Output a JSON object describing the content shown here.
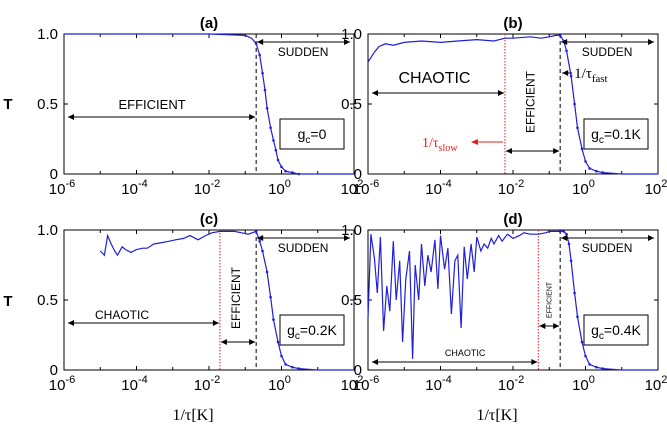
{
  "figure": {
    "ylabel": "T",
    "xlabel": "1/τ[K]"
  },
  "colors": {
    "series": "#1f1fdc",
    "threshold": "#e02020",
    "dashed": "#000000",
    "axis": "#000000"
  },
  "chart_data": [
    {
      "panel_label": "(a)",
      "type": "line",
      "xscale": "log",
      "xlim": [
        1e-06,
        100
      ],
      "ylim": [
        0,
        1.0
      ],
      "xticks": [
        {
          "v": -6,
          "lbl": "10",
          "exp": "-6"
        },
        {
          "v": -4,
          "lbl": "10",
          "exp": "-4"
        },
        {
          "v": -2,
          "lbl": "10",
          "exp": "-2"
        },
        {
          "v": 0,
          "lbl": "10",
          "exp": "0"
        },
        {
          "v": 2,
          "lbl": "10",
          "exp": "2"
        }
      ],
      "yticks": [
        "0",
        "0.5",
        "1.0"
      ],
      "series": [
        {
          "x": [
            1e-06,
            0.0001,
            0.01,
            0.1,
            0.15,
            0.2,
            0.25,
            0.3,
            0.35,
            0.4,
            0.5,
            0.6,
            0.7,
            0.8,
            1.0,
            1.3,
            2,
            3,
            5,
            10,
            100
          ],
          "y": [
            1.0,
            1.0,
            1.0,
            0.99,
            0.97,
            0.93,
            0.85,
            0.72,
            0.6,
            0.47,
            0.33,
            0.24,
            0.17,
            0.1,
            0.05,
            0.02,
            0.01,
            0,
            0,
            0,
            0
          ]
        }
      ],
      "annotations": {
        "gc": "g",
        "gc_sub": "c",
        "gc_value": "=0",
        "sudden": "SUDDEN",
        "efficient": "EFFICIENT",
        "dashed_x": 0.2
      }
    },
    {
      "panel_label": "(b)",
      "type": "line",
      "xscale": "log",
      "xlim": [
        1e-06,
        100
      ],
      "ylim": [
        0,
        1.0
      ],
      "xticks": [
        {
          "v": -6,
          "lbl": "10",
          "exp": "-6"
        },
        {
          "v": -4,
          "lbl": "10",
          "exp": "-4"
        },
        {
          "v": -2,
          "lbl": "10",
          "exp": "-2"
        },
        {
          "v": 0,
          "lbl": "10",
          "exp": "0"
        },
        {
          "v": 2,
          "lbl": "10",
          "exp": "2"
        }
      ],
      "yticks": [
        "0",
        "0.5",
        "1.0"
      ],
      "series": [
        {
          "x": [
            1e-06,
            1.5e-06,
            2e-06,
            3e-06,
            5e-06,
            1e-05,
            3e-05,
            0.0001,
            0.0003,
            0.001,
            0.003,
            0.006,
            0.01,
            0.03,
            0.06,
            0.1,
            0.15,
            0.2,
            0.25,
            0.3,
            0.4,
            0.5,
            0.6,
            0.8,
            1.0,
            1.3,
            2,
            3,
            10,
            100
          ],
          "y": [
            0.8,
            0.87,
            0.91,
            0.93,
            0.92,
            0.94,
            0.95,
            0.94,
            0.95,
            0.96,
            0.95,
            0.97,
            0.97,
            0.98,
            0.97,
            0.98,
            0.99,
            0.99,
            0.95,
            0.88,
            0.7,
            0.5,
            0.33,
            0.18,
            0.09,
            0.04,
            0.02,
            0.01,
            0,
            0
          ]
        }
      ],
      "annotations": {
        "gc": "g",
        "gc_sub": "c",
        "gc_value": "=0.1K",
        "sudden": "SUDDEN",
        "efficient": "EFFICIENT",
        "chaotic": "CHAOTIC",
        "fast_label": "1/τ",
        "fast_sub": "fast",
        "slow_label": "1/τ",
        "slow_sub": "slow",
        "dashed_x": 0.2,
        "red_x": 0.006
      }
    },
    {
      "panel_label": "(c)",
      "type": "line",
      "xscale": "log",
      "xlim": [
        1e-06,
        100
      ],
      "ylim": [
        0,
        1.0
      ],
      "xticks": [
        {
          "v": -6,
          "lbl": "10",
          "exp": "-6"
        },
        {
          "v": -4,
          "lbl": "10",
          "exp": "-4"
        },
        {
          "v": -2,
          "lbl": "10",
          "exp": "-2"
        },
        {
          "v": 0,
          "lbl": "10",
          "exp": "0"
        },
        {
          "v": 2,
          "lbl": "10",
          "exp": "2"
        }
      ],
      "yticks": [
        "0",
        "0.5",
        "1.0"
      ],
      "series": [
        {
          "x": [
            1e-05,
            1.3e-05,
            1.6e-05,
            2e-05,
            2.5e-05,
            3e-05,
            4e-05,
            5e-05,
            7e-05,
            0.0001,
            0.00015,
            0.0002,
            0.0003,
            0.0005,
            0.0008,
            0.0012,
            0.002,
            0.003,
            0.005,
            0.008,
            0.012,
            0.02,
            0.03,
            0.05,
            0.08,
            0.12,
            0.2,
            0.25,
            0.3,
            0.4,
            0.5,
            0.6,
            0.8,
            1.0,
            1.3,
            2,
            3,
            10,
            100
          ],
          "y": [
            0.85,
            0.82,
            0.96,
            0.9,
            0.85,
            0.82,
            0.88,
            0.86,
            0.84,
            0.86,
            0.87,
            0.87,
            0.9,
            0.91,
            0.92,
            0.93,
            0.94,
            0.96,
            0.93,
            0.96,
            0.98,
            0.99,
            0.99,
            0.99,
            0.98,
            0.97,
            0.99,
            0.92,
            0.85,
            0.7,
            0.52,
            0.36,
            0.2,
            0.1,
            0.04,
            0.02,
            0.01,
            0,
            0
          ]
        }
      ],
      "annotations": {
        "gc": "g",
        "gc_sub": "c",
        "gc_value": "=0.2K",
        "sudden": "SUDDEN",
        "efficient": "EFFICIENT",
        "chaotic": "CHAOTIC",
        "dashed_x": 0.2,
        "red_x": 0.02
      }
    },
    {
      "panel_label": "(d)",
      "type": "line",
      "xscale": "log",
      "xlim": [
        1e-06,
        100
      ],
      "ylim": [
        0,
        1.0
      ],
      "xticks": [
        {
          "v": -6,
          "lbl": "10",
          "exp": "-6"
        },
        {
          "v": -4,
          "lbl": "10",
          "exp": "-4"
        },
        {
          "v": -2,
          "lbl": "10",
          "exp": "-2"
        },
        {
          "v": 0,
          "lbl": "10",
          "exp": "0"
        },
        {
          "v": 2,
          "lbl": "10",
          "exp": "2"
        }
      ],
      "yticks": [
        "0",
        "0.5",
        "1.0"
      ],
      "series": [
        {
          "x": [
            1e-06,
            1.2e-06,
            1.5e-06,
            1.8e-06,
            2.2e-06,
            2.7e-06,
            3.3e-06,
            4e-06,
            5e-06,
            6e-06,
            7.5e-06,
            9e-06,
            1.1e-05,
            1.4e-05,
            1.7e-05,
            2e-05,
            2.5e-05,
            3e-05,
            3.7e-05,
            4.5e-05,
            5.5e-05,
            7e-05,
            8.5e-05,
            0.0001,
            0.00013,
            0.00016,
            0.0002,
            0.00025,
            0.0003,
            0.00037,
            0.00045,
            0.00055,
            0.0007,
            0.00085,
            0.001,
            0.0013,
            0.0016,
            0.002,
            0.0025,
            0.003,
            0.004,
            0.005,
            0.007,
            0.01,
            0.015,
            0.02,
            0.03,
            0.05,
            0.08,
            0.1,
            0.15,
            0.2,
            0.25,
            0.3,
            0.35,
            0.4,
            0.5,
            0.6,
            0.8,
            1.0,
            1.3,
            2,
            3,
            10,
            100
          ],
          "y": [
            0.37,
            0.97,
            0.8,
            0.55,
            0.95,
            0.28,
            0.6,
            0.42,
            0.92,
            0.5,
            0.78,
            0.2,
            0.65,
            0.85,
            0.08,
            0.75,
            0.5,
            0.9,
            0.6,
            0.82,
            0.7,
            0.93,
            0.58,
            0.96,
            0.72,
            0.87,
            0.4,
            0.78,
            0.82,
            0.3,
            0.88,
            0.65,
            0.9,
            0.7,
            0.95,
            0.85,
            0.9,
            0.87,
            0.94,
            0.9,
            0.96,
            0.92,
            0.97,
            0.94,
            0.96,
            0.98,
            0.97,
            0.97,
            0.98,
            0.99,
            0.99,
            0.99,
            0.99,
            0.97,
            0.9,
            0.78,
            0.55,
            0.38,
            0.2,
            0.1,
            0.04,
            0.02,
            0.01,
            0,
            0
          ]
        }
      ],
      "annotations": {
        "gc": "g",
        "gc_sub": "c",
        "gc_value": "=0.4K",
        "sudden": "SUDDEN",
        "efficient": "EFFICIENT",
        "chaotic": "CHAOTIC",
        "dashed_x": 0.2,
        "red_x": 0.05
      }
    }
  ]
}
